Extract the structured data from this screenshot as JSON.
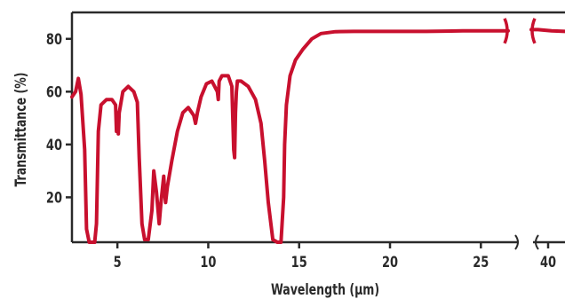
{
  "chart_data": {
    "type": "line",
    "title": "",
    "xlabel": "Wavelength (µm)",
    "ylabel": "Transmittance (%)",
    "grid": false,
    "xlim": [
      2.5,
      41
    ],
    "ylim": [
      3,
      90
    ],
    "x_axis_break": {
      "from": 26.5,
      "to": 39,
      "style": "broken-axis"
    },
    "x_ticks": [
      {
        "value": 5,
        "label": "5"
      },
      {
        "value": 10,
        "label": "10"
      },
      {
        "value": 15,
        "label": "15"
      },
      {
        "value": 20,
        "label": "20"
      },
      {
        "value": 25,
        "label": "25"
      },
      {
        "value": 40,
        "label": "40"
      }
    ],
    "y_ticks": [
      {
        "value": 20,
        "label": "20"
      },
      {
        "value": 40,
        "label": "40"
      },
      {
        "value": 60,
        "label": "60"
      },
      {
        "value": 80,
        "label": "80"
      }
    ],
    "colors": {
      "line": "#c8102e",
      "axis": "#2a2a2a"
    },
    "series": [
      {
        "x": [
          2.5,
          2.7,
          2.85,
          3.0,
          3.2,
          3.3,
          3.45,
          3.6,
          3.75,
          3.85,
          3.95,
          4.1,
          4.4,
          4.7,
          4.9,
          4.95,
          5.0,
          5.05,
          5.1,
          5.3,
          5.6,
          5.9,
          6.1,
          6.2,
          6.35,
          6.5,
          6.7,
          6.9,
          7.0,
          7.15,
          7.3,
          7.4,
          7.55,
          7.6,
          7.65,
          7.75,
          8.0,
          8.3,
          8.6,
          8.9,
          9.2,
          9.3,
          9.4,
          9.6,
          9.9,
          10.2,
          10.5,
          10.55,
          10.6,
          10.75,
          11.1,
          11.3,
          11.4,
          11.45,
          11.5,
          11.55,
          11.6,
          11.8,
          12.2,
          12.6,
          12.9,
          13.1,
          13.3,
          13.55,
          13.8,
          14.0,
          14.15,
          14.2,
          14.3,
          14.5,
          14.8,
          15.2,
          15.7,
          16.2,
          17.0,
          18.0,
          20.0,
          22.0,
          24.0,
          25.5,
          26.4,
          26.5,
          39.0,
          39.4,
          40.2,
          41.0
        ],
        "y": [
          58,
          60,
          65,
          59,
          38,
          8,
          3,
          3,
          3,
          10,
          45,
          55,
          57,
          57,
          55,
          45,
          52,
          44,
          52,
          60,
          62,
          60,
          56,
          35,
          10,
          4,
          4,
          15,
          30,
          22,
          10,
          18,
          28,
          22,
          18,
          24,
          34,
          45,
          52,
          54,
          51,
          48,
          52,
          58,
          63,
          64,
          60,
          57,
          64,
          66,
          66,
          62,
          38,
          35,
          52,
          60,
          64,
          64,
          62,
          57,
          48,
          34,
          18,
          4,
          3,
          3,
          20,
          40,
          55,
          66,
          72,
          76,
          80,
          82,
          82.7,
          82.8,
          82.8,
          82.8,
          83.0,
          83.0,
          83.0,
          83.0,
          83.5,
          83.5,
          83.0,
          82.8
        ]
      }
    ]
  }
}
